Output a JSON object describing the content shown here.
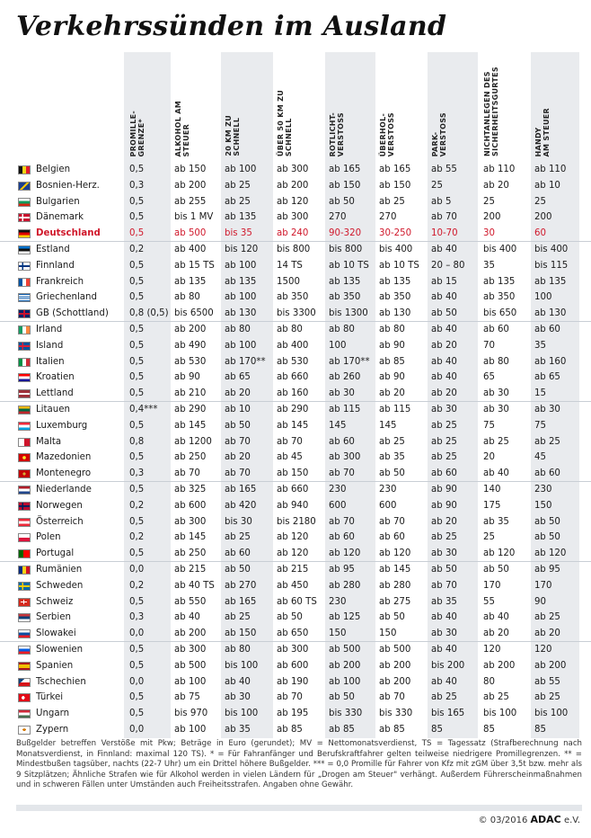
{
  "title": "Verkehrssünden im Ausland",
  "headers": [
    "Promille-\ngrenze*",
    "Alkohol am\nSteuer",
    "20 km zu\nschnell",
    "über 50 km zu\nschnell",
    "Rotlicht-\nverstoß",
    "Überhol-\nverstoß",
    "Park-\nverstoß",
    "Nichtanlegen des\nSicherheitsgurtes",
    "Handy\nam Steuer"
  ],
  "rows": [
    {
      "country": "Belgien",
      "flag": "flag-belgium",
      "values": [
        "0,5",
        "ab 150",
        "ab 100",
        "ab 300",
        "ab 165",
        "ab 165",
        "ab 55",
        "ab 110",
        "ab 110"
      ]
    },
    {
      "country": "Bosnien-Herz.",
      "flag": "flag-bosnia",
      "values": [
        "0,3",
        "ab 200",
        "ab 25",
        "ab 200",
        "ab 150",
        "ab 150",
        "25",
        "ab 20",
        "ab 10"
      ]
    },
    {
      "country": "Bulgarien",
      "flag": "flag-bulgaria",
      "values": [
        "0,5",
        "ab 255",
        "ab 25",
        "ab 120",
        "ab 50",
        "ab 25",
        "ab 5",
        "25",
        "25"
      ]
    },
    {
      "country": "Dänemark",
      "flag": "flag-denmark",
      "values": [
        "0,5",
        "bis 1 MV",
        "ab 135",
        "ab 300",
        "270",
        "270",
        "ab 70",
        "200",
        "200"
      ]
    },
    {
      "country": "Deutschland",
      "flag": "flag-germany",
      "highlight": true,
      "values": [
        "0,5",
        "ab 500",
        "bis 35",
        "ab 240",
        "90-320",
        "30-250",
        "10-70",
        "30",
        "60"
      ]
    },
    {
      "country": "Estland",
      "flag": "flag-estonia",
      "values": [
        "0,2",
        "ab 400",
        "bis 120",
        "bis 800",
        "bis 800",
        "bis 400",
        "ab 40",
        "bis 400",
        "bis 400"
      ]
    },
    {
      "country": "Finnland",
      "flag": "flag-finland",
      "values": [
        "0,5",
        "ab 15 TS",
        "ab 100",
        "14 TS",
        "ab 10 TS",
        "ab 10 TS",
        "20 – 80",
        "35",
        "bis 115"
      ]
    },
    {
      "country": "Frankreich",
      "flag": "flag-france",
      "values": [
        "0,5",
        "ab 135",
        "ab 135",
        "1500",
        "ab 135",
        "ab 135",
        "ab 15",
        "ab 135",
        "ab 135"
      ]
    },
    {
      "country": "Griechenland",
      "flag": "flag-greece",
      "values": [
        "0,5",
        "ab 80",
        "ab 100",
        "ab 350",
        "ab 350",
        "ab 350",
        "ab 40",
        "ab 350",
        "100"
      ]
    },
    {
      "country": "GB (Schottland)",
      "flag": "flag-uk",
      "values": [
        "0,8 (0,5)",
        "bis 6500",
        "ab 130",
        "bis 3300",
        "bis 1300",
        "ab 130",
        "ab 50",
        "bis 650",
        "ab 130"
      ]
    },
    {
      "country": "Irland",
      "flag": "flag-ireland",
      "values": [
        "0,5",
        "ab 200",
        "ab 80",
        "ab 80",
        "ab 80",
        "ab 80",
        "ab 40",
        "ab 60",
        "ab 60"
      ]
    },
    {
      "country": "Island",
      "flag": "flag-iceland",
      "values": [
        "0,5",
        "ab 490",
        "ab 100",
        "ab 400",
        "100",
        "ab 90",
        "ab 20",
        "70",
        "35"
      ]
    },
    {
      "country": "Italien",
      "flag": "flag-italy",
      "values": [
        "0,5",
        "ab 530",
        "ab 170**",
        "ab 530",
        "ab 170**",
        "ab 85",
        "ab 40",
        "ab 80",
        "ab 160"
      ]
    },
    {
      "country": "Kroatien",
      "flag": "flag-croatia",
      "values": [
        "0,5",
        "ab 90",
        "ab 65",
        "ab 660",
        "ab 260",
        "ab 90",
        "ab 40",
        "65",
        "ab 65"
      ]
    },
    {
      "country": "Lettland",
      "flag": "flag-latvia",
      "values": [
        "0,5",
        "ab 210",
        "ab 20",
        "ab 160",
        "ab 30",
        "ab 20",
        "ab 20",
        "ab 30",
        "15"
      ]
    },
    {
      "country": "Litauen",
      "flag": "flag-lithuania",
      "values": [
        "0,4***",
        "ab 290",
        "ab 10",
        "ab 290",
        "ab 115",
        "ab 115",
        "ab 30",
        "ab 30",
        "ab 30"
      ]
    },
    {
      "country": "Luxemburg",
      "flag": "flag-luxembourg",
      "values": [
        "0,5",
        "ab 145",
        "ab 50",
        "ab 145",
        "145",
        "145",
        "ab 25",
        "75",
        "75"
      ]
    },
    {
      "country": "Malta",
      "flag": "flag-malta",
      "values": [
        "0,8",
        "ab 1200",
        "ab 70",
        "ab 70",
        "ab 60",
        "ab 25",
        "ab 25",
        "ab 25",
        "ab 25"
      ]
    },
    {
      "country": "Mazedonien",
      "flag": "flag-macedonia",
      "values": [
        "0,5",
        "ab 250",
        "ab 20",
        "ab 45",
        "ab 300",
        "ab 35",
        "ab 25",
        "20",
        "45"
      ]
    },
    {
      "country": "Montenegro",
      "flag": "flag-montenegro",
      "values": [
        "0,3",
        "ab 70",
        "ab 70",
        "ab 150",
        "ab 70",
        "ab 50",
        "ab 60",
        "ab 40",
        "ab 60"
      ]
    },
    {
      "country": "Niederlande",
      "flag": "flag-netherlands",
      "values": [
        "0,5",
        "ab 325",
        "ab 165",
        "ab 660",
        "230",
        "230",
        "ab 90",
        "140",
        "230"
      ]
    },
    {
      "country": "Norwegen",
      "flag": "flag-norway",
      "values": [
        "0,2",
        "ab 600",
        "ab 420",
        "ab 940",
        "600",
        "600",
        "ab 90",
        "175",
        "150"
      ]
    },
    {
      "country": "Österreich",
      "flag": "flag-austria",
      "values": [
        "0,5",
        "ab 300",
        "bis 30",
        "bis 2180",
        "ab 70",
        "ab 70",
        "ab 20",
        "ab 35",
        "ab 50"
      ]
    },
    {
      "country": "Polen",
      "flag": "flag-poland",
      "values": [
        "0,2",
        "ab 145",
        "ab 25",
        "ab 120",
        "ab 60",
        "ab 60",
        "ab 25",
        "25",
        "ab 50"
      ]
    },
    {
      "country": "Portugal",
      "flag": "flag-portugal",
      "values": [
        "0,5",
        "ab 250",
        "ab 60",
        "ab 120",
        "ab 120",
        "ab 120",
        "ab 30",
        "ab 120",
        "ab 120"
      ]
    },
    {
      "country": "Rumänien",
      "flag": "flag-romania",
      "values": [
        "0,0",
        "ab 215",
        "ab 50",
        "ab 215",
        "ab 95",
        "ab 145",
        "ab 50",
        "ab 50",
        "ab 95"
      ]
    },
    {
      "country": "Schweden",
      "flag": "flag-sweden",
      "values": [
        "0,2",
        "ab 40 TS",
        "ab 270",
        "ab 450",
        "ab 280",
        "ab 280",
        "ab 70",
        "170",
        "170"
      ]
    },
    {
      "country": "Schweiz",
      "flag": "flag-switzerland",
      "values": [
        "0,5",
        "ab 550",
        "ab 165",
        "ab 60 TS",
        "230",
        "ab 275",
        "ab 35",
        "55",
        "90"
      ]
    },
    {
      "country": "Serbien",
      "flag": "flag-serbia",
      "values": [
        "0,3",
        "ab 40",
        "ab 25",
        "ab 50",
        "ab 125",
        "ab 50",
        "ab 40",
        "ab 40",
        "ab 25"
      ]
    },
    {
      "country": "Slowakei",
      "flag": "flag-slovakia",
      "values": [
        "0,0",
        "ab 200",
        "ab 150",
        "ab 650",
        "150",
        "150",
        "ab 30",
        "ab 20",
        "ab 20"
      ]
    },
    {
      "country": "Slowenien",
      "flag": "flag-slovenia",
      "values": [
        "0,5",
        "ab 300",
        "ab 80",
        "ab 300",
        "ab 500",
        "ab 500",
        "ab 40",
        "120",
        "120"
      ]
    },
    {
      "country": "Spanien",
      "flag": "flag-spain",
      "values": [
        "0,5",
        "ab 500",
        "bis 100",
        "ab 600",
        "ab 200",
        "ab 200",
        "bis 200",
        "ab 200",
        "ab 200"
      ]
    },
    {
      "country": "Tschechien",
      "flag": "flag-czech",
      "values": [
        "0,0",
        "ab 100",
        "ab 40",
        "ab 190",
        "ab 100",
        "ab 200",
        "ab 40",
        "80",
        "ab 55"
      ]
    },
    {
      "country": "Türkei",
      "flag": "flag-turkey",
      "values": [
        "0,5",
        "ab 75",
        "ab 30",
        "ab 70",
        "ab 50",
        "ab 70",
        "ab 25",
        "ab 25",
        "ab 25"
      ]
    },
    {
      "country": "Ungarn",
      "flag": "flag-hungary",
      "values": [
        "0,5",
        "bis 970",
        "bis 100",
        "ab 195",
        "bis 330",
        "bis 330",
        "bis 165",
        "bis 100",
        "bis 100"
      ]
    },
    {
      "country": "Zypern",
      "flag": "flag-cyprus",
      "values": [
        "0,0",
        "ab 100",
        "ab 35",
        "ab 85",
        "ab 85",
        "ab 85",
        "85",
        "85",
        "85"
      ]
    }
  ],
  "footnote": "Bußgelder betreffen Verstöße mit Pkw; Beträge in Euro (gerundet); MV = Nettomonatsverdienst, TS = Tagessatz (Strafberechnung nach Monatsverdienst, in Finnland: maximal 120 TS). * = Für Fahranfänger und Berufskraftfahrer gelten teilweise niedrigere Promillegrenzen. ** = Mindestbußen tagsüber, nachts (22-7 Uhr) um ein Drittel höhere Bußgelder. *** = 0,0 Promille für Fahrer von Kfz mit zGM über 3,5t bzw. mehr als 9 Sitzplätzen; Ähnliche Strafen wie für Alkohol werden in vielen Ländern für „Drogen am Steuer\" verhängt. Außerdem Führerscheinmaßnahmen und in schweren Fällen unter Umständen auch Freiheitsstrafen. Angaben ohne Gewähr.",
  "copyright": {
    "prefix": "© 03/2016",
    "brand": "ADAC",
    "suffix": "e.V."
  },
  "colors": {
    "band": "#e9ebee",
    "highlight": "#d0182b",
    "rule": "#c9ced5"
  }
}
